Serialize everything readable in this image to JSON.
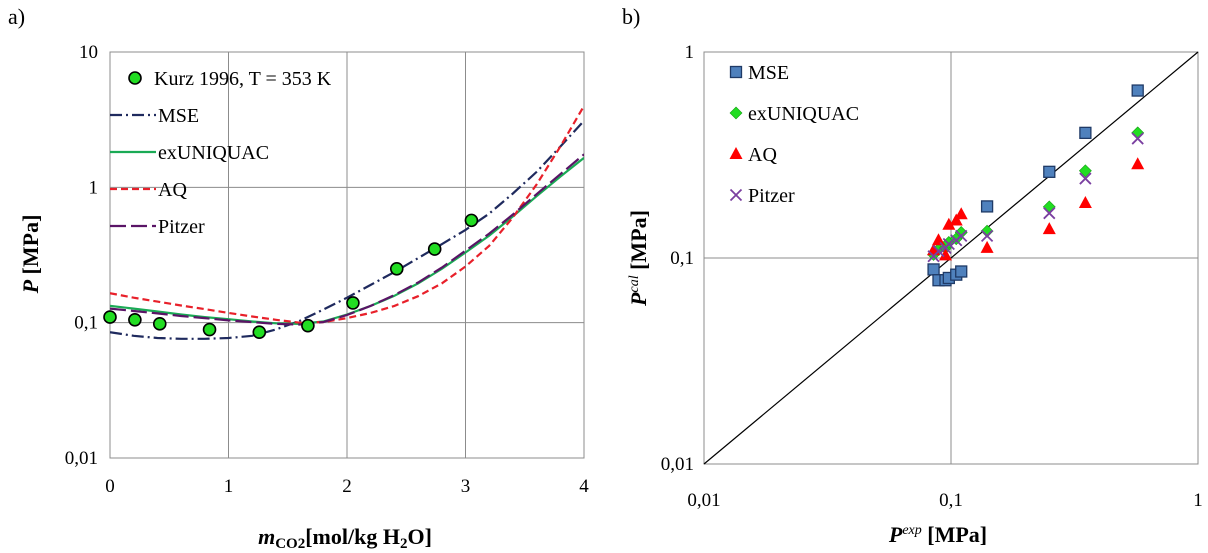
{
  "chart_data": [
    {
      "panel_label": "a)",
      "type": "scatter",
      "x_scale": "linear",
      "y_scale": "log",
      "xlim": [
        0,
        4
      ],
      "ylim": [
        0.01,
        10
      ],
      "x_ticks": [
        "0",
        "1",
        "2",
        "3",
        "4"
      ],
      "y_ticks": [
        "0,01",
        "0,1",
        "1",
        "10"
      ],
      "xlabel": {
        "symbol": "m",
        "subscript": "CO2",
        "rest": "[mol/kg H",
        "sub2": "2",
        "end": "O]"
      },
      "ylabel": {
        "symbol": "P",
        "rest": " [MPa]"
      },
      "grid": true,
      "legend_position": "top-left",
      "legend": [
        {
          "label": "Kurz 1996, T = 353 K",
          "color": "#22dd22",
          "style": "marker"
        },
        {
          "label": "MSE",
          "color": "#1f2a5e",
          "style": "dashdot"
        },
        {
          "label": "exUNIQUAC",
          "color": "#1aaa55",
          "style": "solid"
        },
        {
          "label": "AQ",
          "color": "#e8202a",
          "style": "dashed"
        },
        {
          "label": "Pitzer",
          "color": "#5a1466",
          "style": "longdash"
        }
      ],
      "series": [
        {
          "name": "Kurz 1996, T = 353 K",
          "kind": "points",
          "color": "#22dd22",
          "x": [
            0.0,
            0.21,
            0.42,
            0.84,
            1.26,
            1.67,
            2.05,
            2.42,
            2.74,
            3.05
          ],
          "y": [
            0.11,
            0.105,
            0.098,
            0.089,
            0.085,
            0.095,
            0.14,
            0.25,
            0.35,
            0.57
          ]
        },
        {
          "name": "MSE",
          "kind": "line",
          "color": "#1f2a5e",
          "x": [
            0,
            0.2,
            0.4,
            0.6,
            0.8,
            1.0,
            1.2,
            1.4,
            1.6,
            1.8,
            2.0,
            2.2,
            2.4,
            2.6,
            2.8,
            3.0,
            3.2,
            3.4,
            3.6,
            3.8,
            4.0
          ],
          "y": [
            0.085,
            0.08,
            0.077,
            0.076,
            0.076,
            0.077,
            0.08,
            0.089,
            0.103,
            0.125,
            0.153,
            0.19,
            0.237,
            0.3,
            0.38,
            0.485,
            0.64,
            0.9,
            1.3,
            2.0,
            3.1
          ]
        },
        {
          "name": "exUNIQUAC",
          "kind": "line",
          "color": "#1aaa55",
          "x": [
            0,
            0.2,
            0.4,
            0.6,
            0.8,
            1.0,
            1.2,
            1.4,
            1.6,
            1.8,
            2.0,
            2.2,
            2.4,
            2.6,
            2.8,
            3.0,
            3.2,
            3.4,
            3.6,
            3.8,
            4.0
          ],
          "y": [
            0.133,
            0.127,
            0.121,
            0.115,
            0.11,
            0.106,
            0.102,
            0.099,
            0.098,
            0.102,
            0.115,
            0.133,
            0.158,
            0.195,
            0.25,
            0.33,
            0.44,
            0.61,
            0.86,
            1.2,
            1.65
          ]
        },
        {
          "name": "AQ",
          "kind": "line",
          "color": "#e8202a",
          "x": [
            0,
            0.2,
            0.4,
            0.6,
            0.8,
            1.0,
            1.2,
            1.4,
            1.6,
            1.8,
            2.0,
            2.2,
            2.4,
            2.6,
            2.8,
            3.0,
            3.2,
            3.4,
            3.6,
            3.8,
            4.0
          ],
          "y": [
            0.165,
            0.153,
            0.143,
            0.134,
            0.126,
            0.118,
            0.111,
            0.105,
            0.1,
            0.101,
            0.108,
            0.118,
            0.133,
            0.157,
            0.195,
            0.26,
            0.37,
            0.6,
            1.05,
            2.0,
            4.0
          ]
        },
        {
          "name": "Pitzer",
          "kind": "line",
          "color": "#5a1466",
          "x": [
            0,
            0.2,
            0.4,
            0.6,
            0.8,
            1.0,
            1.2,
            1.4,
            1.6,
            1.8,
            2.0,
            2.2,
            2.4,
            2.6,
            2.8,
            3.0,
            3.2,
            3.4,
            3.6,
            3.8,
            4.0
          ],
          "y": [
            0.127,
            0.122,
            0.117,
            0.112,
            0.108,
            0.104,
            0.101,
            0.098,
            0.097,
            0.101,
            0.114,
            0.133,
            0.16,
            0.198,
            0.255,
            0.34,
            0.455,
            0.63,
            0.89,
            1.25,
            1.75
          ]
        }
      ]
    },
    {
      "panel_label": "b)",
      "type": "scatter",
      "x_scale": "log",
      "y_scale": "log",
      "xlim": [
        0.01,
        1
      ],
      "ylim": [
        0.01,
        1
      ],
      "x_ticks": [
        "0,01",
        "0,1",
        "1"
      ],
      "y_ticks": [
        "0,01",
        "0,1",
        "1"
      ],
      "xlabel": {
        "symbol": "P",
        "sup": "exp",
        "rest": " [MPa]"
      },
      "ylabel": {
        "symbol": "P",
        "sup": "cal",
        "rest": " [MPa]"
      },
      "grid": true,
      "diagonal": true,
      "legend_position": "top-left",
      "x": [
        0.085,
        0.089,
        0.095,
        0.098,
        0.105,
        0.11,
        0.14,
        0.25,
        0.35,
        0.57
      ],
      "series": [
        {
          "name": "MSE",
          "marker": "square",
          "color": "#4f81bd",
          "y": [
            0.088,
            0.078,
            0.078,
            0.08,
            0.083,
            0.086,
            0.178,
            0.262,
            0.405,
            0.65
          ]
        },
        {
          "name": "exUNIQUAC",
          "marker": "diamond",
          "color": "#22dd22",
          "y": [
            0.104,
            0.11,
            0.112,
            0.119,
            0.124,
            0.133,
            0.135,
            0.177,
            0.265,
            0.405
          ]
        },
        {
          "name": "AQ",
          "marker": "triangle",
          "color": "#ff0000",
          "y": [
            0.109,
            0.122,
            0.103,
            0.145,
            0.152,
            0.163,
            0.112,
            0.138,
            0.185,
            0.285
          ]
        },
        {
          "name": "Pitzer",
          "marker": "x",
          "color": "#7a3fa0",
          "y": [
            0.102,
            0.108,
            0.112,
            0.117,
            0.122,
            0.128,
            0.128,
            0.165,
            0.243,
            0.38
          ]
        }
      ]
    }
  ]
}
